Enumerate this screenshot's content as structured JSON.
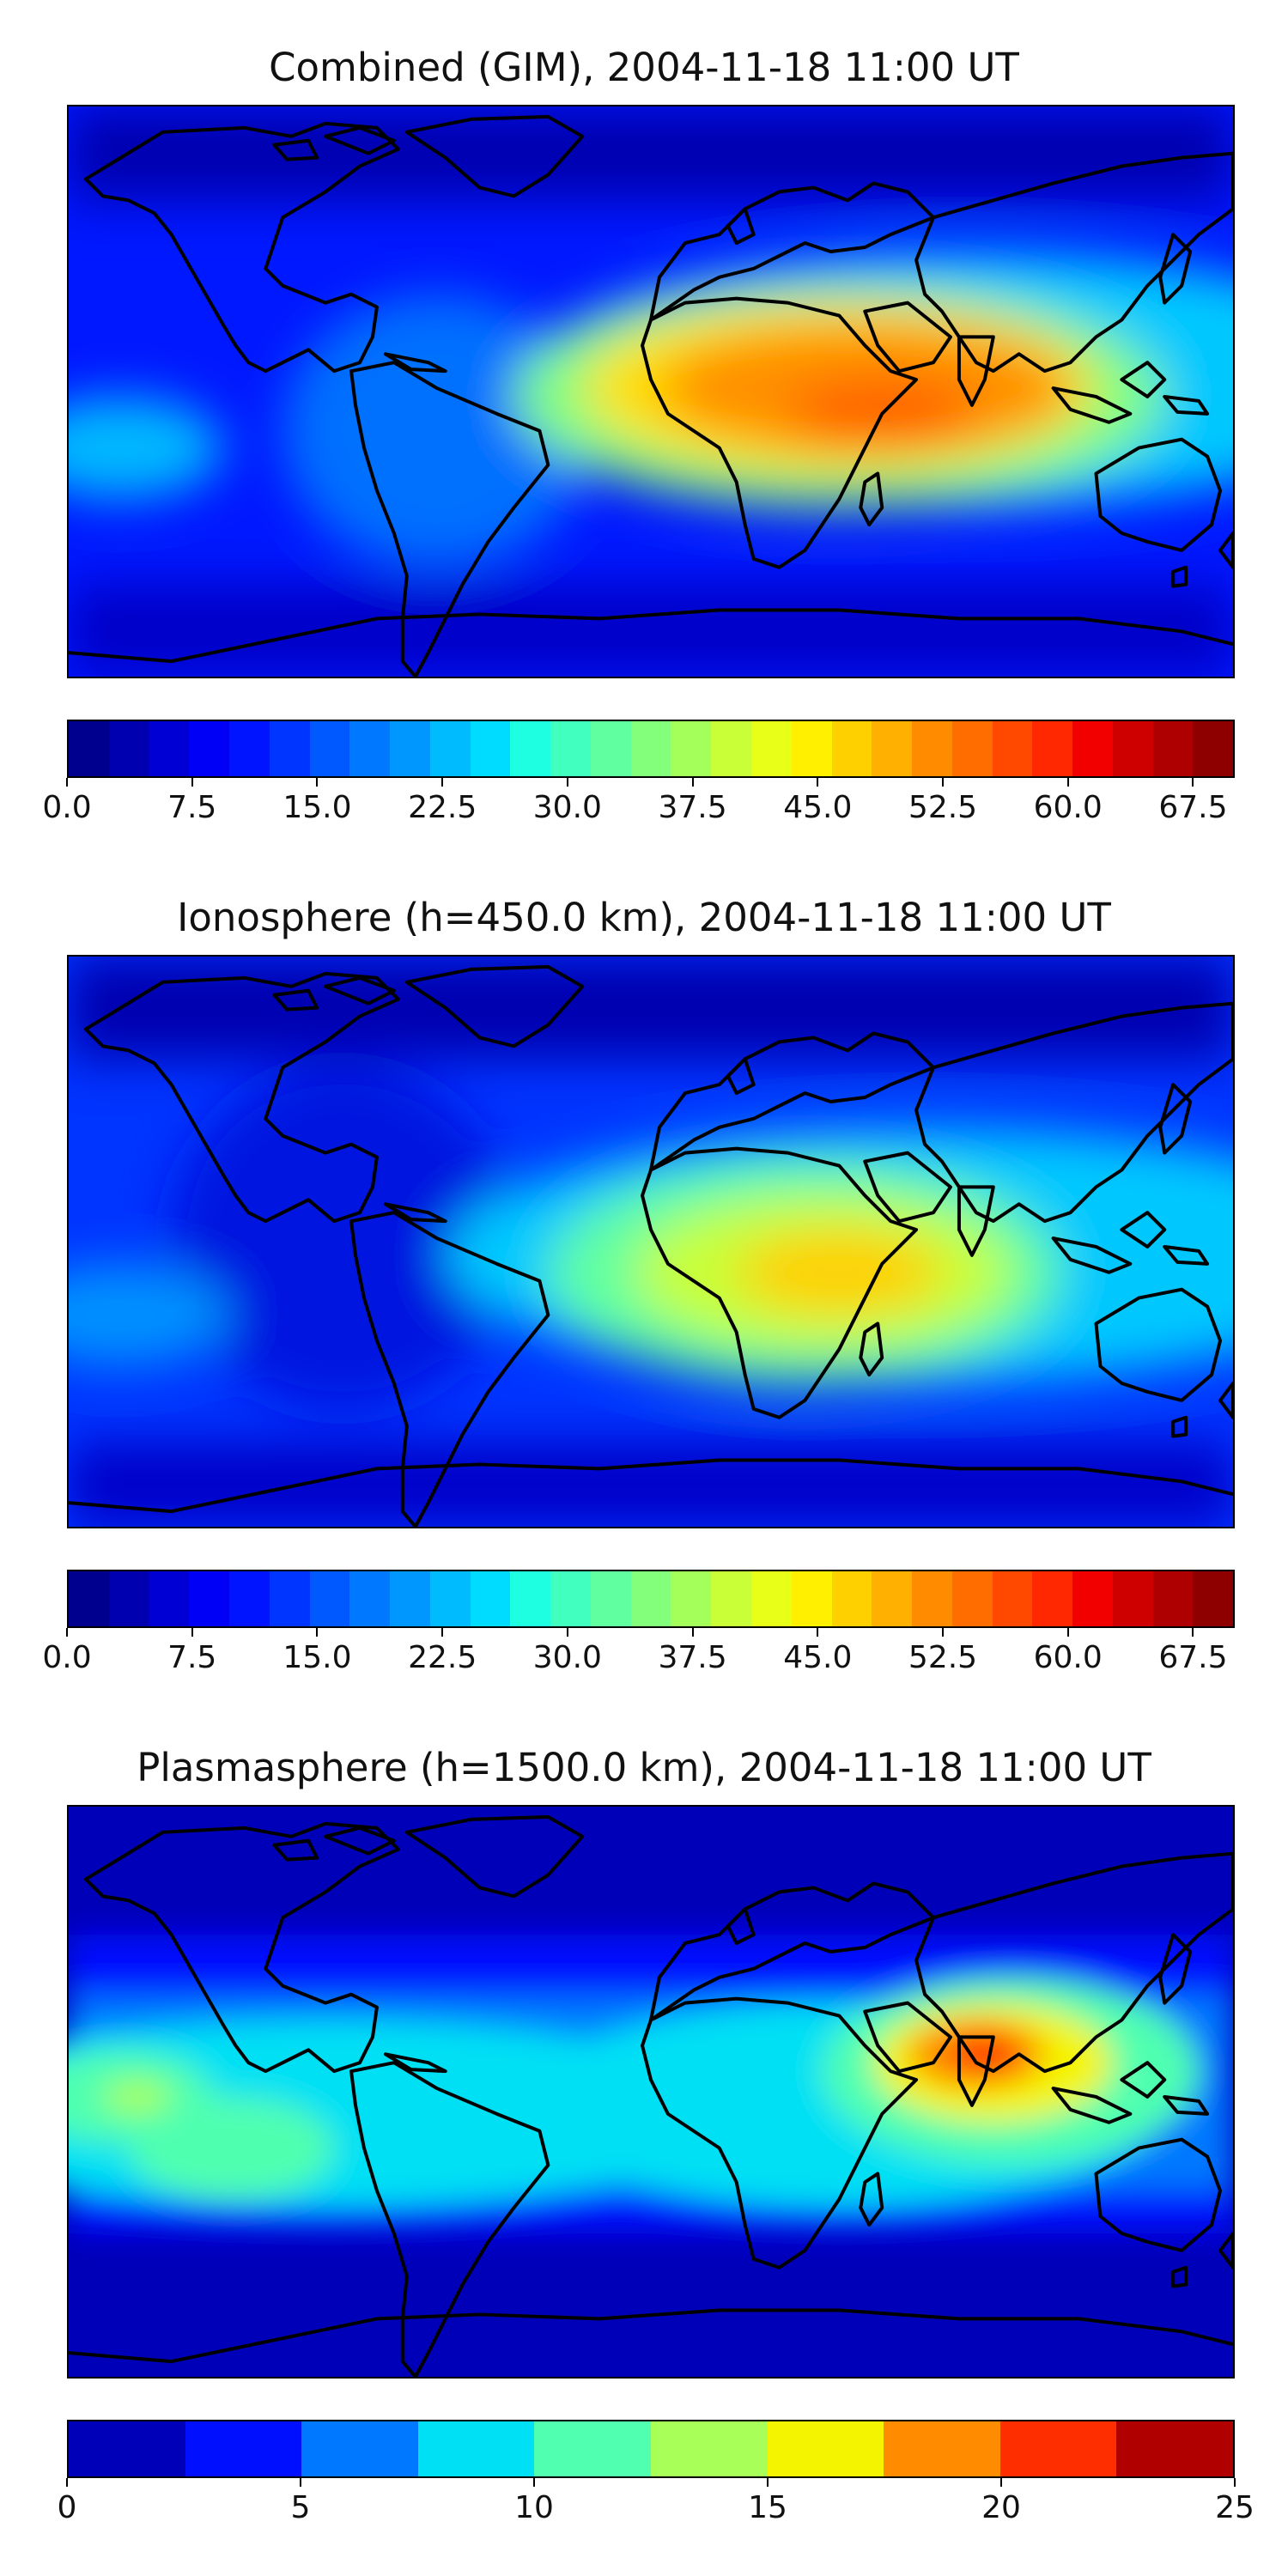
{
  "panels": [
    {
      "title": "Combined (GIM), 2004-11-18 11:00 UT",
      "colorbar": {
        "vmin": 0,
        "vmax": 70,
        "colors": [
          "#00008f",
          "#0000b0",
          "#0000d4",
          "#0000f6",
          "#0014ff",
          "#0034ff",
          "#0058ff",
          "#0078ff",
          "#0098ff",
          "#00bcff",
          "#00dcff",
          "#1effe1",
          "#40ffbf",
          "#60ff9f",
          "#84ff7b",
          "#a4ff5b",
          "#c8ff37",
          "#e8ff17",
          "#fff000",
          "#ffd000",
          "#ffb000",
          "#ff8c00",
          "#ff6c00",
          "#ff4800",
          "#ff2800",
          "#f20000",
          "#ce0000",
          "#ae0000",
          "#8e0000"
        ],
        "tick_labels": [
          "0.0",
          "7.5",
          "15.0",
          "22.5",
          "30.0",
          "37.5",
          "45.0",
          "52.5",
          "60.0",
          "67.5"
        ]
      }
    },
    {
      "title": "Ionosphere  (h=450.0 km), 2004-11-18 11:00 UT",
      "colorbar": {
        "vmin": 0,
        "vmax": 70,
        "colors": [
          "#00008f",
          "#0000b0",
          "#0000d4",
          "#0000f6",
          "#0014ff",
          "#0034ff",
          "#0058ff",
          "#0078ff",
          "#0098ff",
          "#00bcff",
          "#00dcff",
          "#1effe1",
          "#40ffbf",
          "#60ff9f",
          "#84ff7b",
          "#a4ff5b",
          "#c8ff37",
          "#e8ff17",
          "#fff000",
          "#ffd000",
          "#ffb000",
          "#ff8c00",
          "#ff6c00",
          "#ff4800",
          "#ff2800",
          "#f20000",
          "#ce0000",
          "#ae0000",
          "#8e0000"
        ],
        "tick_labels": [
          "0.0",
          "7.5",
          "15.0",
          "22.5",
          "30.0",
          "37.5",
          "45.0",
          "52.5",
          "60.0",
          "67.5"
        ]
      }
    },
    {
      "title": "Plasmasphere (h=1500.0 km), 2004-11-18 11:00 UT",
      "colorbar": {
        "vmin": 0,
        "vmax": 25,
        "colors": [
          "#0000b8",
          "#0010ff",
          "#0078ff",
          "#00e0f4",
          "#50ffb0",
          "#a8ff58",
          "#f4f400",
          "#ff8c00",
          "#ff2e00",
          "#b00000"
        ],
        "tick_labels": [
          "0",
          "5",
          "10",
          "15",
          "20",
          "25"
        ]
      }
    }
  ]
}
